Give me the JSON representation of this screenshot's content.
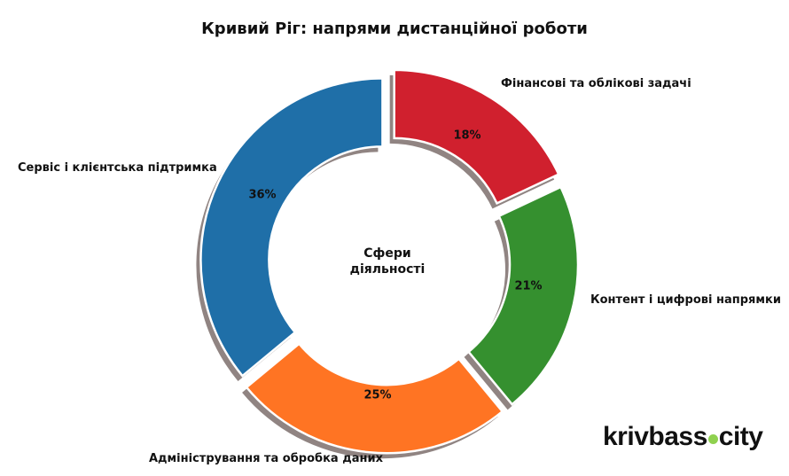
{
  "chart_data": {
    "type": "pie",
    "subtype": "donut",
    "title": "Кривий Ріг: напрями дистанційної роботи",
    "center_label": [
      "Сфери",
      "діяльності"
    ],
    "start_angle": 90,
    "direction": "counterclockwise",
    "categories": [
      "Сервіс і клієнтська підтримка",
      "Адміністрування та обробка даних",
      "Контент і цифрові напрямки",
      "Фінансові та облікові задачі"
    ],
    "values": [
      36,
      25,
      21,
      18
    ],
    "value_labels": [
      "36%",
      "25%",
      "21%",
      "18%"
    ],
    "colors": [
      "#1f6fa8",
      "#ff7423",
      "#35902f",
      "#d0202e"
    ],
    "explode": [
      0.03,
      0.05,
      0.05,
      0.07
    ],
    "shadow": true,
    "legend": "none"
  },
  "title": "Кривий Ріг: напрями дистанційної роботи",
  "center": {
    "line1": "Сфери",
    "line2": "діяльності"
  },
  "labels": {
    "service": "Сервіс і клієнтська підтримка",
    "admin": "Адміністрування та обробка даних",
    "content": "Контент і цифрові напрямки",
    "finance": "Фінансові та облікові задачі"
  },
  "pcts": {
    "service": "36%",
    "admin": "25%",
    "content": "21%",
    "finance": "18%"
  },
  "watermark": {
    "left": "krivbass",
    "right": "city",
    "dot_color": "#8fd14f"
  }
}
